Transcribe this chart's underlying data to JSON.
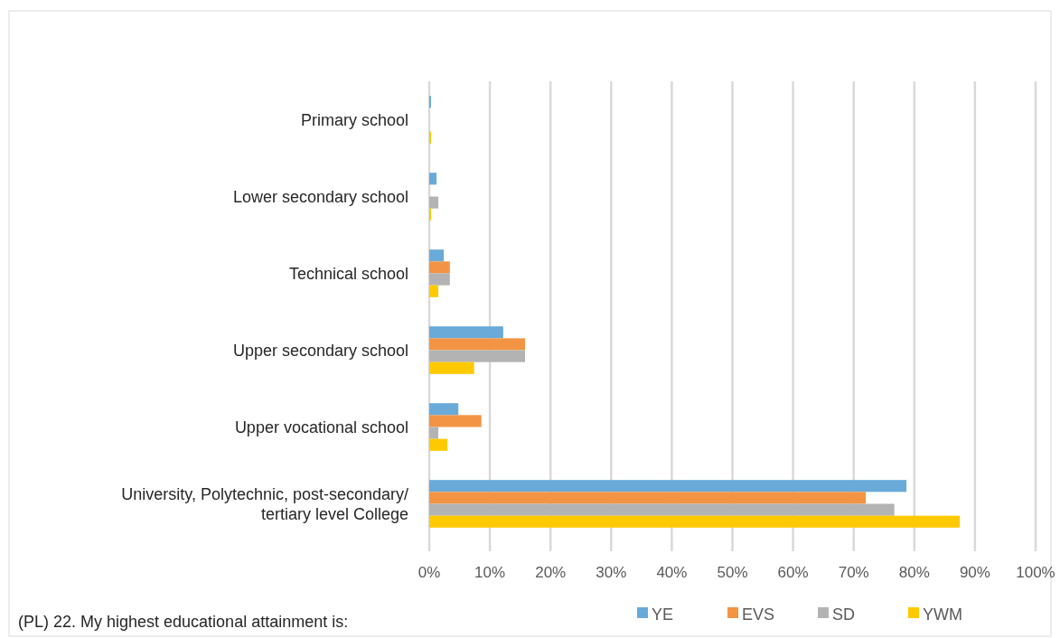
{
  "chart_data": {
    "type": "bar",
    "orientation": "horizontal",
    "categories": [
      "Primary school",
      "Lower secondary school",
      "Technical school",
      "Upper secondary school",
      "Upper vocational school",
      "University, Polytechnic, post-secondary/ tertiary level College"
    ],
    "series": [
      {
        "name": "YE",
        "color": "#6aaad9",
        "values": [
          0.3,
          1.2,
          2.4,
          12.2,
          4.8,
          78.7
        ]
      },
      {
        "name": "EVS",
        "color": "#f29443",
        "values": [
          0,
          0,
          3.4,
          15.8,
          8.6,
          72
        ]
      },
      {
        "name": "SD",
        "color": "#b3b3b3",
        "values": [
          0,
          1.5,
          3.4,
          15.8,
          1.5,
          76.7
        ]
      },
      {
        "name": "YWM",
        "color": "#ffc900",
        "values": [
          0.3,
          0.3,
          1.5,
          7.4,
          3,
          87.5
        ]
      }
    ],
    "xlim": [
      0,
      100
    ],
    "xticks": [
      {
        "value": 0,
        "label": "0%"
      },
      {
        "value": 10,
        "label": "10%"
      },
      {
        "value": 20,
        "label": "20%"
      },
      {
        "value": 30,
        "label": "30%"
      },
      {
        "value": 40,
        "label": "40%"
      },
      {
        "value": 50,
        "label": "50%"
      },
      {
        "value": 60,
        "label": "60%"
      },
      {
        "value": 70,
        "label": "70%"
      },
      {
        "value": 80,
        "label": "80%"
      },
      {
        "value": 90,
        "label": "90%"
      },
      {
        "value": 100,
        "label": "100%"
      }
    ],
    "grid": "x",
    "legend": "bottom right",
    "annotations": [
      "(PL) 22. My highest educational attainment is:"
    ]
  }
}
